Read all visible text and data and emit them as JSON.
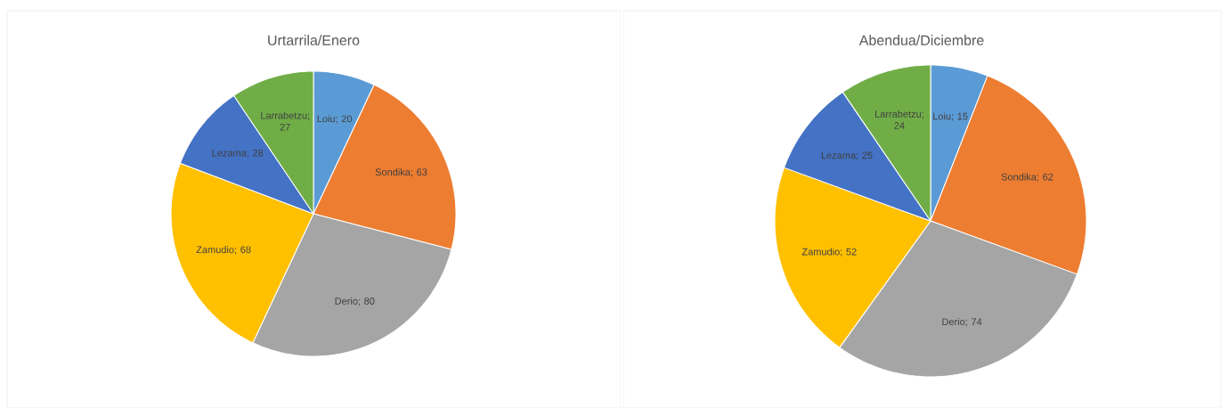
{
  "chart_data": [
    {
      "type": "pie",
      "title": "Urtarrila/Enero",
      "categories": [
        "Loiu",
        "Sondika",
        "Derio",
        "Zamudio",
        "Lezama",
        "Larrabetzu"
      ],
      "values": [
        20,
        63,
        80,
        68,
        28,
        27
      ],
      "value_labels": [
        "; 20",
        "; 63",
        "; 80",
        "; 68",
        "; 28",
        "; 27"
      ],
      "colors": [
        "#5b9bd5",
        "#ed7d31",
        "#a5a5a5",
        "#ffc000",
        "#4472c4",
        "#70ad47"
      ]
    },
    {
      "type": "pie",
      "title": "Abendua/Diciembre",
      "categories": [
        "Loiu",
        "Sondika",
        "Derio",
        "Zamudio",
        "Lezama",
        "Larrabetzu"
      ],
      "values": [
        15,
        62,
        74,
        52,
        25,
        24
      ],
      "value_labels": [
        "; 15",
        "; 62",
        "; 74",
        "; 52",
        "; 25",
        "; 24"
      ],
      "colors": [
        "#5b9bd5",
        "#ed7d31",
        "#a5a5a5",
        "#ffc000",
        "#4472c4",
        "#70ad47"
      ]
    }
  ]
}
